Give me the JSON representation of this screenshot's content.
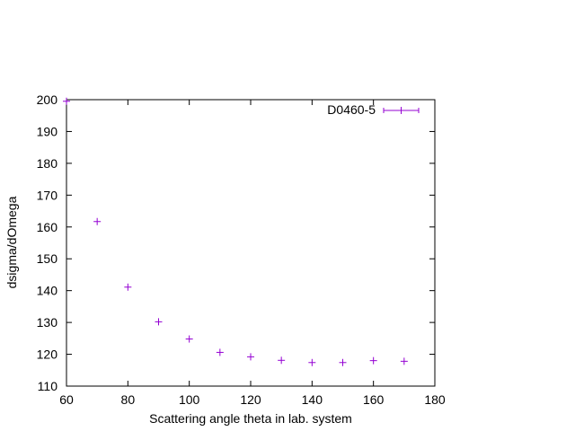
{
  "chart_data": {
    "type": "scatter",
    "title": "",
    "xlabel": "Scattering angle theta in lab. system",
    "ylabel": "dsigma/dOmega",
    "xlim": [
      60,
      180
    ],
    "ylim": [
      110,
      200
    ],
    "xticks": [
      60,
      80,
      100,
      120,
      140,
      160,
      180
    ],
    "yticks": [
      110,
      120,
      130,
      140,
      150,
      160,
      170,
      180,
      190,
      200
    ],
    "grid": false,
    "legend_position": "top-right",
    "series": [
      {
        "name": "D0460-5",
        "color": "#9400d3",
        "marker": "plus",
        "error_bars": "x",
        "points": [
          {
            "x": 60,
            "y": 199.5
          },
          {
            "x": 70,
            "y": 161.7
          },
          {
            "x": 80,
            "y": 141.1
          },
          {
            "x": 90,
            "y": 130.2
          },
          {
            "x": 100,
            "y": 124.8
          },
          {
            "x": 110,
            "y": 120.6
          },
          {
            "x": 120,
            "y": 119.2
          },
          {
            "x": 130,
            "y": 118.1
          },
          {
            "x": 140,
            "y": 117.4
          },
          {
            "x": 150,
            "y": 117.4
          },
          {
            "x": 160,
            "y": 118.0
          },
          {
            "x": 170,
            "y": 117.8
          }
        ]
      }
    ]
  }
}
